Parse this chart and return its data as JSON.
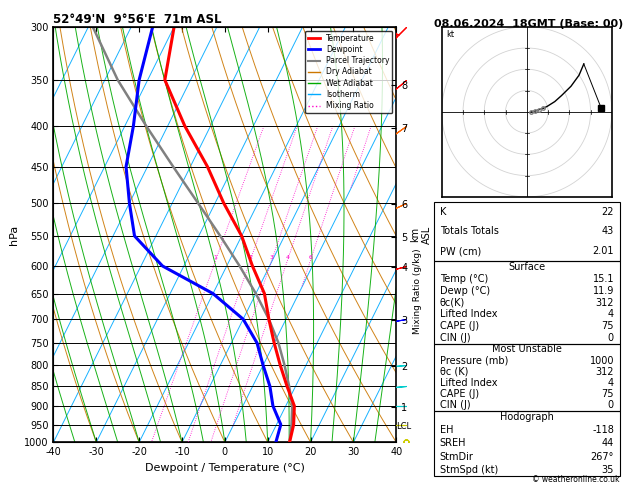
{
  "title_left": "52°49'N  9°56'E  71m ASL",
  "title_right": "08.06.2024  18GMT (Base: 00)",
  "xlabel": "Dewpoint / Temperature (°C)",
  "pressure_levels": [
    300,
    350,
    400,
    450,
    500,
    550,
    600,
    650,
    700,
    750,
    800,
    850,
    900,
    950,
    1000
  ],
  "temp_xlim": [
    -40,
    40
  ],
  "km_ticks": [
    1,
    2,
    3,
    4,
    5,
    6,
    7,
    8
  ],
  "km_pressures": [
    902,
    802,
    702,
    602,
    552,
    502,
    402,
    355
  ],
  "skew_factor": 40,
  "color_temp": "#ff0000",
  "color_dewp": "#0000ff",
  "color_parcel": "#808080",
  "color_dry_adiabat": "#cc7700",
  "color_wet_adiabat": "#00aa00",
  "color_isotherm": "#00aaff",
  "color_mixing": "#ff00cc",
  "temperature_profile_temp": [
    15.1,
    14.0,
    12.0,
    8.0,
    4.0,
    0.0,
    -4.0,
    -8.0,
    -14.0,
    -20.0,
    -28.0,
    -36.0,
    -46.0,
    -56.0,
    -60.0
  ],
  "temperature_profile_pres": [
    1000,
    950,
    900,
    850,
    800,
    750,
    700,
    650,
    600,
    550,
    500,
    450,
    400,
    350,
    300
  ],
  "dewpoint_profile_temp": [
    11.9,
    11.0,
    7.0,
    4.0,
    0.0,
    -4.0,
    -10.0,
    -20.0,
    -35.0,
    -45.0,
    -50.0,
    -55.0,
    -58.0,
    -62.0,
    -65.0
  ],
  "dewpoint_profile_pres": [
    1000,
    950,
    900,
    850,
    800,
    750,
    700,
    650,
    600,
    550,
    500,
    450,
    400,
    350,
    300
  ],
  "parcel_profile_temp": [
    15.1,
    13.5,
    11.5,
    8.5,
    5.0,
    1.0,
    -4.0,
    -10.0,
    -17.0,
    -25.0,
    -34.0,
    -44.0,
    -55.0,
    -67.0,
    -79.0
  ],
  "parcel_profile_pres": [
    1000,
    950,
    900,
    850,
    800,
    750,
    700,
    650,
    600,
    550,
    500,
    450,
    400,
    350,
    300
  ],
  "mixing_ratio_values": [
    1,
    2,
    3,
    4,
    6,
    8,
    10,
    15,
    20,
    25
  ],
  "info_K": 22,
  "info_TT": 43,
  "info_PW": "2.01",
  "surf_temp": "15.1",
  "surf_dewp": "11.9",
  "surf_theta_e": 312,
  "surf_li": 4,
  "surf_cape": 75,
  "surf_cin": 0,
  "mu_pressure": 1000,
  "mu_theta_e": 312,
  "mu_li": 4,
  "mu_cape": 75,
  "mu_cin": 0,
  "hodo_EH": -118,
  "hodo_SREH": 44,
  "hodo_StmDir": 267,
  "hodo_StmSpd": 35,
  "lcl_pressure": 956,
  "wind_barb_data": [
    {
      "p": 300,
      "spd": 35,
      "dir": 225,
      "color": "#ff0000"
    },
    {
      "p": 350,
      "spd": 30,
      "dir": 230,
      "color": "#ff0000"
    },
    {
      "p": 400,
      "spd": 28,
      "dir": 235,
      "color": "#ff6600"
    },
    {
      "p": 500,
      "spd": 22,
      "dir": 245,
      "color": "#ff6600"
    },
    {
      "p": 600,
      "spd": 18,
      "dir": 255,
      "color": "#ff0000"
    },
    {
      "p": 700,
      "spd": 12,
      "dir": 260,
      "color": "#0000ff"
    },
    {
      "p": 800,
      "spd": 8,
      "dir": 265,
      "color": "#00cccc"
    },
    {
      "p": 850,
      "spd": 6,
      "dir": 265,
      "color": "#00cccc"
    },
    {
      "p": 900,
      "spd": 4,
      "dir": 270,
      "color": "#00cccc"
    },
    {
      "p": 950,
      "spd": 3,
      "dir": 270,
      "color": "#cccc00"
    },
    {
      "p": 1000,
      "spd": 2,
      "dir": 275,
      "color": "#cccc00"
    }
  ]
}
